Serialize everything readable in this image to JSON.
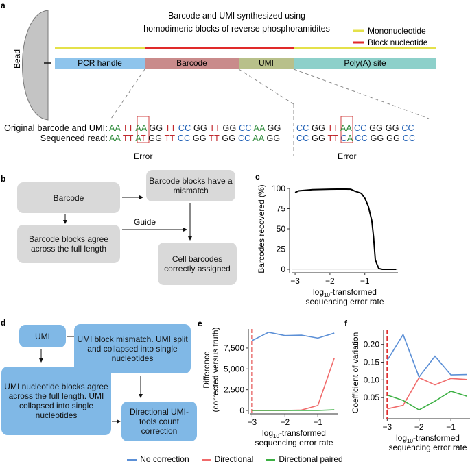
{
  "panels": {
    "a": "a",
    "b": "b",
    "c": "c",
    "d": "d",
    "e": "e",
    "f": "f"
  },
  "a": {
    "title_line1": "Barcode and UMI synthesized using",
    "title_line2": "homodimeric blocks of reverse phosphoramidites",
    "bead": "Bead",
    "legend": [
      {
        "label": "Mononucleotide",
        "color": "#e4e14a"
      },
      {
        "label": "Block nucleotide",
        "color": "#e02a2a"
      }
    ],
    "segments": [
      {
        "label": "PCR handle",
        "color": "#8ec4ec"
      },
      {
        "label": "Barcode",
        "color": "#c98b8b"
      },
      {
        "label": "UMI",
        "color": "#b8c08a"
      },
      {
        "label": "Poly(A) site",
        "color": "#8dd0ca"
      }
    ],
    "row_labels": [
      "Original barcode and UMI:",
      "Sequenced read:"
    ],
    "original_barcode": [
      "AA",
      "TT",
      "AA",
      "GG",
      "TT",
      "CC",
      "GG",
      "TT",
      "GG",
      "CC",
      "AA",
      "GG"
    ],
    "read_barcode": [
      "AA",
      "TT",
      "AT",
      "GG",
      "TT",
      "CC",
      "GG",
      "TT",
      "GG",
      "CC",
      "AA",
      "GG"
    ],
    "original_umi": [
      "CC",
      "GG",
      "TT",
      "AA",
      "CC",
      "GG",
      "GG",
      "CC"
    ],
    "read_umi": [
      "CC",
      "GG",
      "TT",
      "CA",
      "CC",
      "GG",
      "GG",
      "CC"
    ],
    "error_label": "Error",
    "base_colors": {
      "A": "#2e8b3a",
      "T": "#c0282d",
      "G": "#111111",
      "C": "#1f5fb5"
    }
  },
  "b": {
    "barcode": "Barcode",
    "mismatch": "Barcode blocks have a mismatch",
    "agree": "Barcode blocks agree across the full length",
    "assigned": "Cell barcodes correctly assigned",
    "guide": "Guide"
  },
  "d": {
    "umi": "UMI",
    "mismatch": "UMI block mismatch. UMI split and collapsed into single nucleotides",
    "agree": "UMI nucleotide blocks agree across the full length. UMI collapsed into single nucleotides",
    "directional": "Directional UMI-tools count correction"
  },
  "chart_data": [
    {
      "id": "c",
      "type": "line",
      "xlabel": "log10-transformed sequencing error rate",
      "ylabel": "Barcodes recovered (%)",
      "xlim": [
        -3.1,
        -0.05
      ],
      "ylim": [
        0,
        100
      ],
      "xticks": [
        "−3",
        "−2",
        "−1"
      ],
      "xtick_values": [
        -3,
        -2,
        -1
      ],
      "yticks": [
        "0",
        "25",
        "50",
        "75",
        "100"
      ],
      "ytick_values": [
        0,
        25,
        50,
        75,
        100
      ],
      "series": [
        {
          "color": "#000000",
          "x": [
            -3,
            -2.9,
            -2.5,
            -2,
            -1.6,
            -1.4,
            -1.3,
            -1.1,
            -1.0,
            -0.9,
            -0.8,
            -0.75,
            -0.7,
            -0.65,
            -0.6,
            -0.5,
            -0.3,
            -0.1
          ],
          "y": [
            95,
            97,
            98.5,
            99,
            99.3,
            99,
            97,
            94,
            88,
            78,
            60,
            40,
            12,
            6,
            1,
            0,
            0,
            0
          ]
        }
      ]
    },
    {
      "id": "e",
      "type": "line",
      "xlabel": "log10-transformed sequencing error rate",
      "ylabel": "Difference (corrected versus truth)",
      "xlim": [
        -3.05,
        -0.4
      ],
      "ylim": [
        0,
        9800
      ],
      "xticks": [
        "−3",
        "−2",
        "−1"
      ],
      "xtick_values": [
        -3,
        -2,
        -1
      ],
      "yticks": [
        "0",
        "2,500",
        "5,000",
        "7,500"
      ],
      "ytick_values": [
        0,
        2500,
        5000,
        7500
      ],
      "vline": -3,
      "x": [
        -3,
        -2.5,
        -2,
        -1.5,
        -1,
        -0.5
      ],
      "series": [
        {
          "name": "No correction",
          "color": "#5b8fd6",
          "y": [
            8400,
            9400,
            9000,
            9050,
            8700,
            9300
          ]
        },
        {
          "name": "Directional",
          "color": "#f06a6a",
          "y": [
            0,
            0,
            0,
            50,
            600,
            6300
          ]
        },
        {
          "name": "Directional paired",
          "color": "#3cb043",
          "y": [
            0,
            0,
            0,
            0,
            0,
            80
          ]
        }
      ]
    },
    {
      "id": "f",
      "type": "line",
      "xlabel": "log10-transformed sequencing error rate",
      "ylabel": "Coefficient of variation",
      "xlim": [
        -3.05,
        -0.4
      ],
      "ylim": [
        0,
        0.24
      ],
      "xticks": [
        "−3",
        "−2",
        "−1"
      ],
      "xtick_values": [
        -3,
        -2,
        -1
      ],
      "yticks": [
        "0.05",
        "0.10",
        "0.15",
        "0.20"
      ],
      "ytick_values": [
        0.05,
        0.1,
        0.15,
        0.2
      ],
      "vline": -3,
      "x": [
        -3,
        -2.5,
        -2,
        -1.5,
        -1,
        -0.5
      ],
      "series": [
        {
          "name": "No correction",
          "color": "#5b8fd6",
          "y": [
            0.155,
            0.228,
            0.108,
            0.167,
            0.114,
            0.115
          ]
        },
        {
          "name": "Directional",
          "color": "#f06a6a",
          "y": [
            0.018,
            0.028,
            0.106,
            0.086,
            0.104,
            0.101
          ]
        },
        {
          "name": "Directional paired",
          "color": "#3cb043",
          "y": [
            0.057,
            0.042,
            0.015,
            0.04,
            0.068,
            0.054
          ]
        }
      ]
    }
  ],
  "legend": [
    {
      "label": "No correction",
      "color": "#5b8fd6"
    },
    {
      "label": "Directional",
      "color": "#f06a6a"
    },
    {
      "label": "Directional paired",
      "color": "#3cb043"
    }
  ]
}
